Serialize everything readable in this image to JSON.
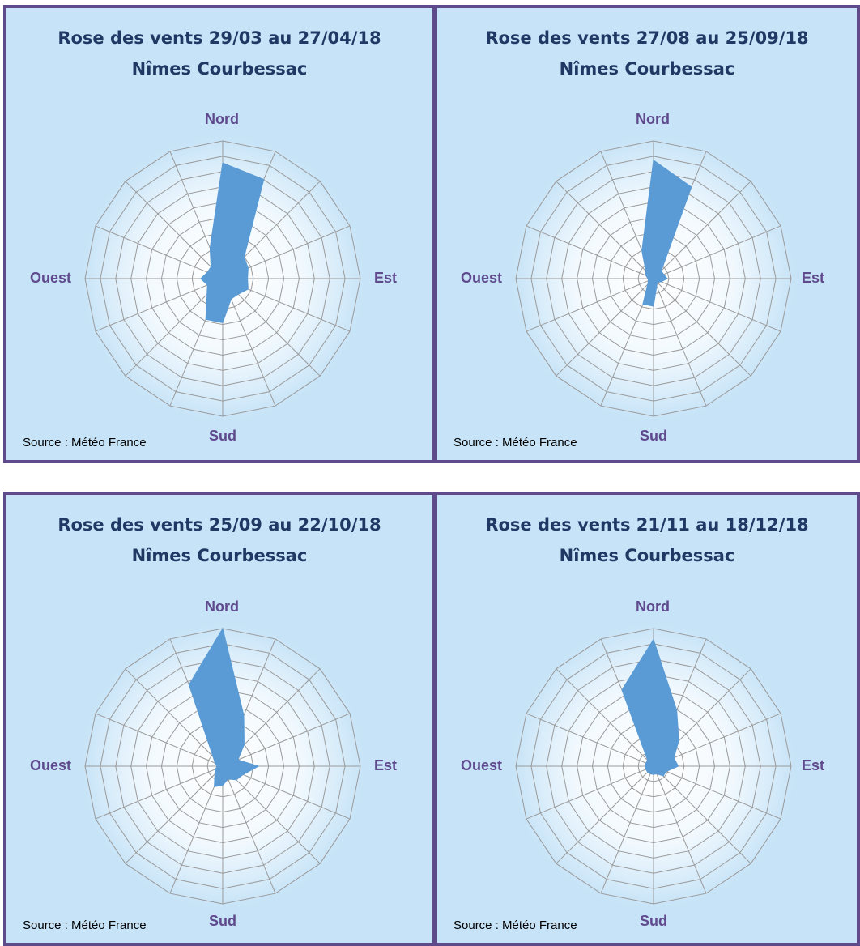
{
  "colors": {
    "border": "#5f4b8b",
    "background": "#c6e3f7",
    "area": "#5b9bd5",
    "grid": "#9a9a9a",
    "title": "#1f3864",
    "direction_label": "#604a8e"
  },
  "charts": [
    {
      "title_line1": "Rose des vents 29/03 au 27/04/18",
      "title_line2": "Nîmes Courbessac",
      "labels": {
        "north": "Nord",
        "east": "Est",
        "south": "Sud",
        "west": "Ouest"
      },
      "source": "Source : Météo France"
    },
    {
      "title_line1": "Rose des vents 27/08 au 25/09/18",
      "title_line2": "Nîmes Courbessac",
      "labels": {
        "north": "Nord",
        "east": "Est",
        "south": "Sud",
        "west": "Ouest"
      },
      "source": "Source : Météo France"
    },
    {
      "title_line1": "Rose des vents 25/09 au 22/10/18",
      "title_line2": "Nîmes Courbessac",
      "labels": {
        "north": "Nord",
        "east": "Est",
        "south": "Sud",
        "west": "Ouest"
      },
      "source": "Source : Météo France"
    },
    {
      "title_line1": "Rose des vents 21/11 au 18/12/18",
      "title_line2": "Nîmes Courbessac",
      "labels": {
        "north": "Nord",
        "east": "Est",
        "south": "Sud",
        "west": "Ouest"
      },
      "source": "Source : Météo France"
    }
  ],
  "chart_data": [
    {
      "type": "radar",
      "title": "Rose des vents 29/03 au 27/04/18 Nîmes Courbessac",
      "directions": 16,
      "rings": 9,
      "grid": true,
      "values": [
        4.2,
        3.9,
        1.1,
        1.0,
        0.9,
        1.0,
        0.8,
        0.8,
        1.6,
        1.6,
        0.8,
        0.6,
        0.8,
        0.6,
        0.6,
        1.2
      ]
    },
    {
      "type": "radar",
      "title": "Rose des vents 27/08 au 25/09/18 Nîmes Courbessac",
      "directions": 16,
      "rings": 9,
      "grid": true,
      "values": [
        4.3,
        3.6,
        0.4,
        0.4,
        0.5,
        0.3,
        0.2,
        0.3,
        1.0,
        1.0,
        0.3,
        0.2,
        0.2,
        0.3,
        0.4,
        1.1
      ]
    },
    {
      "type": "radar",
      "title": "Rose des vents 25/09 au 22/10/18 Nîmes Courbessac",
      "directions": 16,
      "rings": 9,
      "grid": true,
      "values": [
        5.0,
        2.0,
        1.1,
        0.6,
        1.3,
        0.8,
        0.7,
        0.5,
        0.7,
        0.8,
        0.4,
        0.3,
        0.2,
        0.3,
        0.5,
        3.2
      ]
    },
    {
      "type": "radar",
      "title": "Rose des vents 21/11 au 18/12/18 Nîmes Courbessac",
      "directions": 16,
      "rings": 9,
      "grid": true,
      "values": [
        4.6,
        2.2,
        1.3,
        0.8,
        0.9,
        0.5,
        0.5,
        0.3,
        0.3,
        0.3,
        0.3,
        0.3,
        0.3,
        0.3,
        0.3,
        3.0
      ]
    }
  ]
}
